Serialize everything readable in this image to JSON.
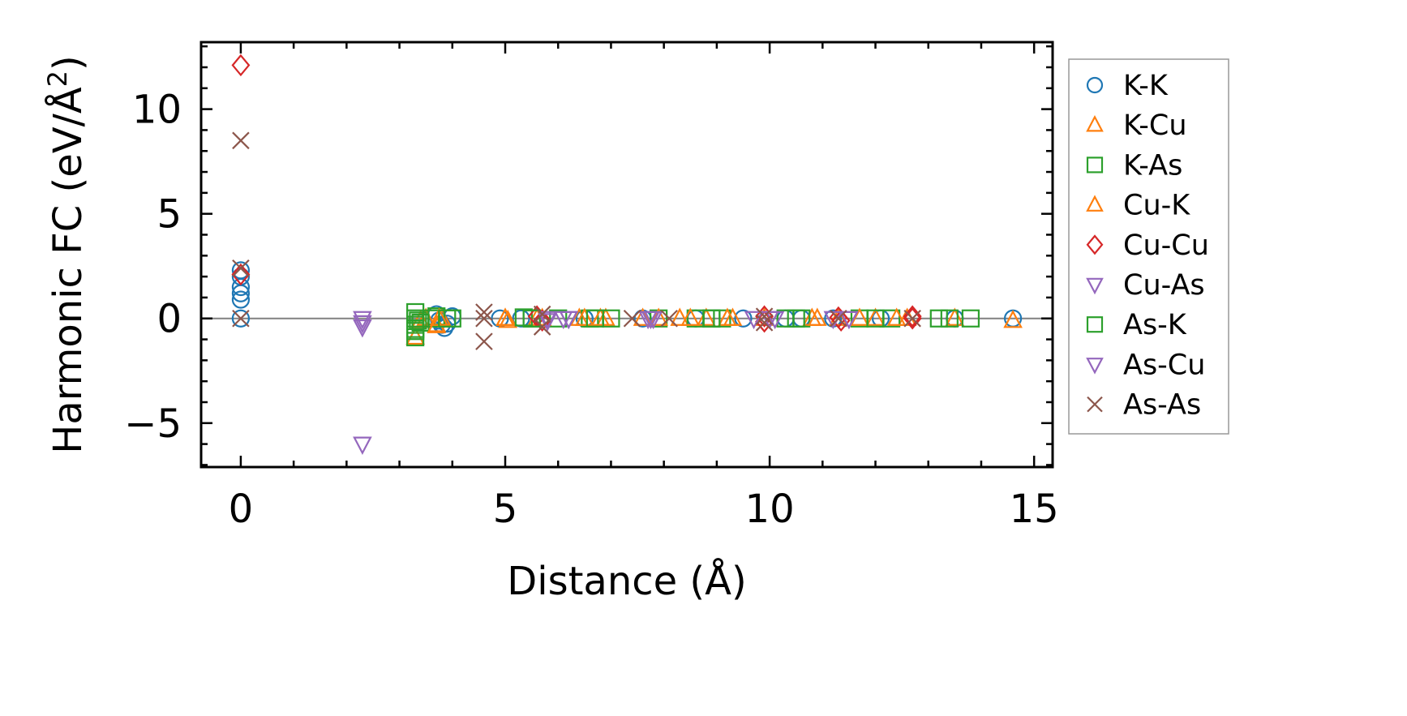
{
  "chart_data": {
    "type": "scatter",
    "xlabel": "Distance (Å)",
    "ylabel": "Harmonic FC (eV/Å²)",
    "ylabel_parts": {
      "pre": "Harmonic FC (eV/Å",
      "sup": "2",
      "post": ")"
    },
    "xlim": [
      -0.75,
      15.35
    ],
    "ylim": [
      -7.1,
      13.2
    ],
    "xticks": [
      0,
      5,
      10,
      15
    ],
    "xtick_labels": [
      "0",
      "5",
      "10",
      "15"
    ],
    "yticks": [
      -5,
      0,
      5,
      10
    ],
    "ytick_labels": [
      "−5",
      "0",
      "5",
      "10"
    ],
    "grid": false,
    "zero_line": true,
    "legend": {
      "placement": "outside-right"
    },
    "series": [
      {
        "name": "K-K",
        "marker": "circle",
        "color": "#1f77b4",
        "points": [
          [
            0,
            2.3
          ],
          [
            0,
            2.0
          ],
          [
            0,
            1.5
          ],
          [
            0,
            1.2
          ],
          [
            0,
            0.9
          ],
          [
            0,
            0.0
          ],
          [
            3.7,
            0.2
          ],
          [
            3.75,
            -0.1
          ],
          [
            3.8,
            -0.3
          ],
          [
            3.85,
            -0.45
          ],
          [
            3.9,
            -0.25
          ],
          [
            4.0,
            0.1
          ],
          [
            4.9,
            0.0
          ],
          [
            5.3,
            0.0
          ],
          [
            6.5,
            0.0
          ],
          [
            7.6,
            0.0
          ],
          [
            8.6,
            0.0
          ],
          [
            9.5,
            0.0
          ],
          [
            10.3,
            0.0
          ],
          [
            10.6,
            0.0
          ],
          [
            11.2,
            0.0
          ],
          [
            12.1,
            0.0
          ],
          [
            13.5,
            0.0
          ],
          [
            14.6,
            0.0
          ]
        ]
      },
      {
        "name": "K-Cu",
        "marker": "triangle-up",
        "color": "#ff7f0e",
        "points": [
          [
            3.3,
            -0.9
          ],
          [
            3.4,
            -0.1
          ],
          [
            3.5,
            0.0
          ],
          [
            3.7,
            -0.3
          ],
          [
            3.8,
            0.0
          ],
          [
            5.0,
            0.0
          ],
          [
            5.05,
            -0.1
          ],
          [
            5.6,
            0.0
          ],
          [
            6.4,
            0.0
          ],
          [
            6.9,
            0.0
          ],
          [
            7.6,
            0.0
          ],
          [
            8.3,
            0.0
          ],
          [
            8.8,
            0.0
          ],
          [
            9.3,
            0.0
          ],
          [
            9.9,
            0.0
          ],
          [
            10.8,
            0.0
          ],
          [
            11.3,
            0.0
          ],
          [
            12.0,
            0.0
          ],
          [
            12.6,
            0.0
          ],
          [
            13.5,
            0.0
          ],
          [
            14.6,
            -0.1
          ]
        ]
      },
      {
        "name": "K-As",
        "marker": "square",
        "color": "#2ca02c",
        "points": [
          [
            3.3,
            0.3
          ],
          [
            3.3,
            0.0
          ],
          [
            3.3,
            -0.3
          ],
          [
            3.3,
            -0.6
          ],
          [
            3.3,
            -0.9
          ],
          [
            3.4,
            -0.2
          ],
          [
            3.6,
            0.0
          ],
          [
            3.7,
            0.1
          ],
          [
            4.0,
            0.0
          ],
          [
            5.35,
            0.05
          ],
          [
            5.5,
            0.0
          ],
          [
            6.0,
            0.0
          ],
          [
            6.6,
            0.0
          ],
          [
            7.0,
            0.0
          ],
          [
            7.9,
            0.0
          ],
          [
            8.6,
            0.0
          ],
          [
            8.9,
            0.0
          ],
          [
            9.1,
            0.0
          ],
          [
            10.3,
            0.0
          ],
          [
            10.6,
            0.0
          ],
          [
            11.7,
            0.0
          ],
          [
            12.3,
            0.0
          ],
          [
            13.2,
            0.0
          ],
          [
            13.8,
            0.0
          ]
        ]
      },
      {
        "name": "Cu-K",
        "marker": "triangle-up",
        "color": "#ff7f0e",
        "points": [
          [
            3.7,
            -0.35
          ],
          [
            3.75,
            0.0
          ],
          [
            5.0,
            0.0
          ],
          [
            5.7,
            0.0
          ],
          [
            6.5,
            0.0
          ],
          [
            6.8,
            0.0
          ],
          [
            7.9,
            0.0
          ],
          [
            8.5,
            0.0
          ],
          [
            9.2,
            0.0
          ],
          [
            10.9,
            0.0
          ],
          [
            11.7,
            0.0
          ],
          [
            12.4,
            0.0
          ]
        ]
      },
      {
        "name": "Cu-Cu",
        "marker": "diamond",
        "color": "#d62728",
        "points": [
          [
            0,
            12.1
          ],
          [
            0,
            2.1
          ],
          [
            5.6,
            0.1
          ],
          [
            5.7,
            -0.1
          ],
          [
            9.9,
            0.1
          ],
          [
            9.9,
            -0.15
          ],
          [
            11.3,
            0.05
          ],
          [
            11.35,
            -0.1
          ],
          [
            12.7,
            0.1
          ],
          [
            12.7,
            0.0
          ]
        ]
      },
      {
        "name": "Cu-As",
        "marker": "triangle-down",
        "color": "#9467bd",
        "points": [
          [
            2.3,
            0.0
          ],
          [
            2.3,
            -0.4
          ],
          [
            2.3,
            -6.0
          ],
          [
            5.8,
            0.0
          ],
          [
            6.1,
            0.0
          ],
          [
            6.2,
            0.0
          ],
          [
            7.7,
            0.0
          ],
          [
            7.8,
            0.0
          ],
          [
            9.7,
            0.0
          ],
          [
            10.1,
            0.0
          ],
          [
            11.2,
            0.0
          ],
          [
            11.5,
            0.0
          ]
        ]
      },
      {
        "name": "As-K",
        "marker": "square",
        "color": "#2ca02c",
        "points": [
          [
            3.3,
            -0.5
          ],
          [
            3.35,
            -0.1
          ],
          [
            3.9,
            0.0
          ],
          [
            5.5,
            0.0
          ],
          [
            6.7,
            0.0
          ],
          [
            8.9,
            0.0
          ],
          [
            10.5,
            0.0
          ],
          [
            12.0,
            0.0
          ],
          [
            13.4,
            0.0
          ]
        ]
      },
      {
        "name": "As-Cu",
        "marker": "triangle-down",
        "color": "#9467bd",
        "points": [
          [
            2.3,
            -0.2
          ],
          [
            5.8,
            -0.1
          ],
          [
            6.2,
            0.0
          ],
          [
            7.75,
            0.0
          ],
          [
            10.0,
            0.0
          ],
          [
            11.5,
            0.0
          ]
        ]
      },
      {
        "name": "As-As",
        "marker": "x",
        "color": "#8c564b",
        "points": [
          [
            0,
            8.5
          ],
          [
            0,
            2.4
          ],
          [
            0,
            0.0
          ],
          [
            4.6,
            0.3
          ],
          [
            4.6,
            0.0
          ],
          [
            4.6,
            -1.1
          ],
          [
            5.7,
            0.2
          ],
          [
            5.7,
            -0.4
          ],
          [
            7.4,
            0.0
          ],
          [
            8.1,
            0.0
          ],
          [
            9.9,
            0.1
          ],
          [
            9.9,
            -0.2
          ],
          [
            11.3,
            0.0
          ],
          [
            12.7,
            0.0
          ]
        ]
      }
    ]
  }
}
